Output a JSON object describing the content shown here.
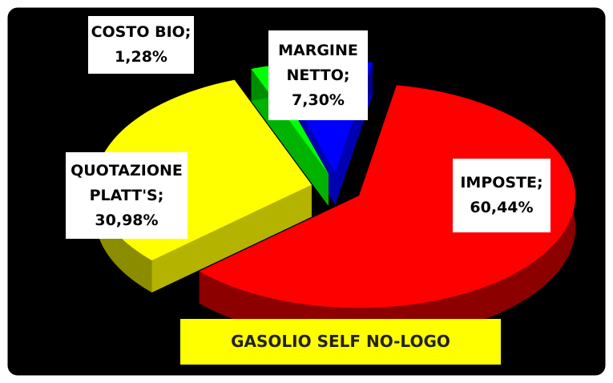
{
  "chart_data": {
    "type": "pie",
    "title": "GASOLIO SELF NO-LOGO",
    "categories": [
      "IMPOSTE",
      "QUOTAZIONE PLATT'S",
      "COSTO BIO",
      "MARGINE NETTO"
    ],
    "label_separator": ";",
    "values": [
      60.44,
      30.98,
      1.28,
      7.3
    ],
    "value_labels": [
      "60,44%",
      "30,98%",
      "1,28%",
      "7,30%"
    ],
    "colors": [
      "#ff0000",
      "#ffff00",
      "#00ff00",
      "#0000ff"
    ]
  }
}
